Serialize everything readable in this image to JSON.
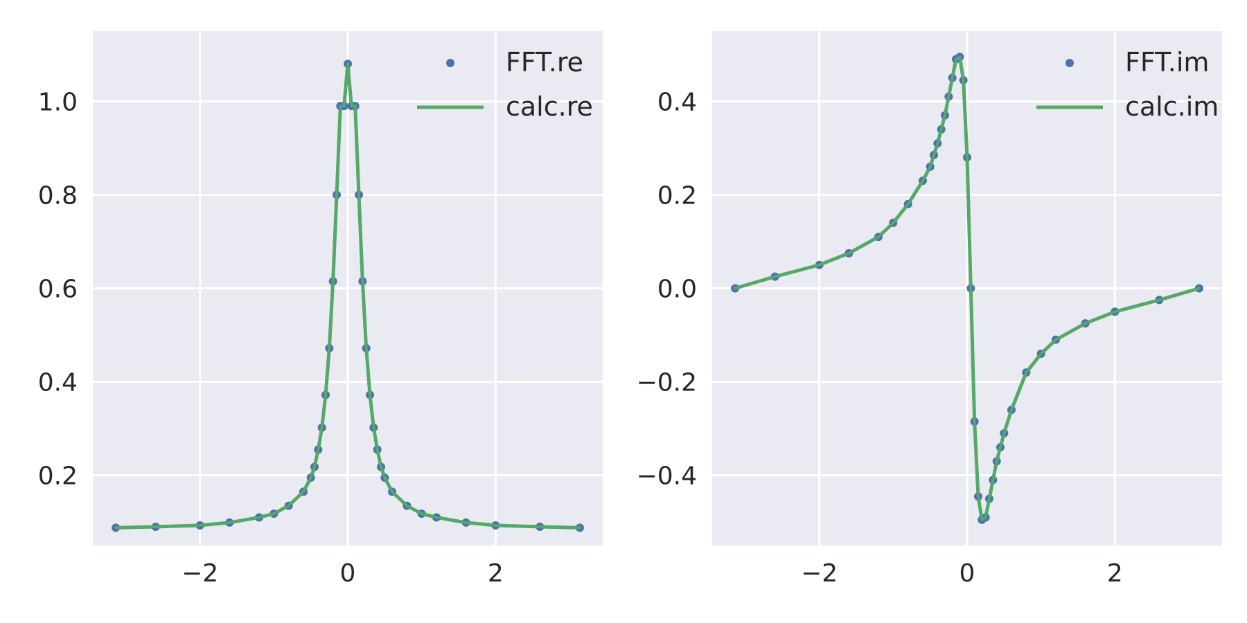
{
  "chart_data": [
    {
      "type": "line",
      "title": "",
      "xlabel": "",
      "ylabel": "",
      "xlim": [
        -3.45,
        3.45
      ],
      "ylim": [
        0.05,
        1.15
      ],
      "x_ticks": [
        -2,
        0,
        2
      ],
      "x_tick_labels": [
        "−2",
        "0",
        "2"
      ],
      "y_ticks": [
        0.2,
        0.4,
        0.6,
        0.8,
        1.0
      ],
      "y_tick_labels": [
        "0.2",
        "0.4",
        "0.6",
        "0.8",
        "1.0"
      ],
      "grid": true,
      "legend": {
        "position": "top-right",
        "entries": [
          "FFT.re",
          "calc.re"
        ]
      },
      "series": [
        {
          "name": "FFT.re",
          "style": "scatter",
          "color": "#4c72b0",
          "x": [
            -3.14,
            -2.6,
            -2.0,
            -1.6,
            -1.2,
            -1.0,
            -0.8,
            -0.6,
            -0.5,
            -0.45,
            -0.4,
            -0.35,
            -0.3,
            -0.25,
            -0.2,
            -0.15,
            -0.1,
            -0.05,
            0.0,
            0.05,
            0.1,
            0.15,
            0.2,
            0.25,
            0.3,
            0.35,
            0.4,
            0.45,
            0.5,
            0.6,
            0.8,
            1.0,
            1.2,
            1.6,
            2.0,
            2.6,
            3.14
          ],
          "y": [
            0.088,
            0.09,
            0.093,
            0.099,
            0.11,
            0.118,
            0.135,
            0.165,
            0.195,
            0.218,
            0.255,
            0.302,
            0.372,
            0.472,
            0.615,
            0.8,
            0.99,
            0.99,
            1.08,
            0.99,
            0.99,
            0.8,
            0.615,
            0.472,
            0.372,
            0.302,
            0.255,
            0.218,
            0.195,
            0.165,
            0.135,
            0.118,
            0.11,
            0.099,
            0.093,
            0.09,
            0.088
          ]
        },
        {
          "name": "calc.re",
          "style": "line",
          "color": "#55a868",
          "x": [
            -3.14,
            -2.6,
            -2.0,
            -1.6,
            -1.2,
            -1.0,
            -0.8,
            -0.6,
            -0.5,
            -0.45,
            -0.4,
            -0.35,
            -0.3,
            -0.25,
            -0.2,
            -0.15,
            -0.1,
            -0.05,
            0.0,
            0.05,
            0.1,
            0.15,
            0.2,
            0.25,
            0.3,
            0.35,
            0.4,
            0.45,
            0.5,
            0.6,
            0.8,
            1.0,
            1.2,
            1.6,
            2.0,
            2.6,
            3.14
          ],
          "y": [
            0.088,
            0.09,
            0.093,
            0.099,
            0.11,
            0.118,
            0.135,
            0.165,
            0.195,
            0.218,
            0.255,
            0.302,
            0.372,
            0.472,
            0.615,
            0.8,
            0.99,
            0.99,
            1.08,
            0.99,
            0.99,
            0.8,
            0.615,
            0.472,
            0.372,
            0.302,
            0.255,
            0.218,
            0.195,
            0.165,
            0.135,
            0.118,
            0.11,
            0.099,
            0.093,
            0.09,
            0.088
          ]
        }
      ]
    },
    {
      "type": "line",
      "title": "",
      "xlabel": "",
      "ylabel": "",
      "xlim": [
        -3.45,
        3.45
      ],
      "ylim": [
        -0.55,
        0.55
      ],
      "x_ticks": [
        -2,
        0,
        2
      ],
      "x_tick_labels": [
        "−2",
        "0",
        "2"
      ],
      "y_ticks": [
        -0.4,
        -0.2,
        0.0,
        0.2,
        0.4
      ],
      "y_tick_labels": [
        "−0.4",
        "−0.2",
        "0.0",
        "0.2",
        "0.4"
      ],
      "grid": true,
      "legend": {
        "position": "top-right",
        "entries": [
          "FFT.im",
          "calc.im"
        ]
      },
      "series": [
        {
          "name": "FFT.im",
          "style": "scatter",
          "color": "#4c72b0",
          "x": [
            -3.14,
            -2.6,
            -2.0,
            -1.6,
            -1.2,
            -1.0,
            -0.8,
            -0.6,
            -0.5,
            -0.45,
            -0.4,
            -0.35,
            -0.3,
            -0.25,
            -0.2,
            -0.15,
            -0.1,
            -0.05,
            0.0,
            0.05,
            0.1,
            0.15,
            0.2,
            0.25,
            0.3,
            0.35,
            0.4,
            0.45,
            0.5,
            0.6,
            0.8,
            1.0,
            1.2,
            1.6,
            2.0,
            2.6,
            3.14
          ],
          "y": [
            0.0,
            0.025,
            0.05,
            0.075,
            0.11,
            0.14,
            0.18,
            0.23,
            0.26,
            0.285,
            0.31,
            0.34,
            0.37,
            0.41,
            0.45,
            0.49,
            0.495,
            0.445,
            0.28,
            0.0,
            -0.285,
            -0.445,
            -0.495,
            -0.49,
            -0.45,
            -0.41,
            -0.37,
            -0.34,
            -0.31,
            -0.26,
            -0.18,
            -0.14,
            -0.11,
            -0.075,
            -0.05,
            -0.025,
            0.0
          ]
        },
        {
          "name": "calc.im",
          "style": "line",
          "color": "#55a868",
          "x": [
            -3.14,
            -2.6,
            -2.0,
            -1.6,
            -1.2,
            -1.0,
            -0.8,
            -0.6,
            -0.5,
            -0.45,
            -0.4,
            -0.35,
            -0.3,
            -0.25,
            -0.2,
            -0.15,
            -0.1,
            -0.05,
            0.0,
            0.05,
            0.1,
            0.15,
            0.2,
            0.25,
            0.3,
            0.35,
            0.4,
            0.45,
            0.5,
            0.6,
            0.8,
            1.0,
            1.2,
            1.6,
            2.0,
            2.6,
            3.14
          ],
          "y": [
            0.0,
            0.025,
            0.05,
            0.075,
            0.11,
            0.14,
            0.18,
            0.23,
            0.26,
            0.285,
            0.31,
            0.34,
            0.37,
            0.41,
            0.45,
            0.49,
            0.495,
            0.445,
            0.28,
            0.0,
            -0.285,
            -0.445,
            -0.495,
            -0.49,
            -0.45,
            -0.41,
            -0.37,
            -0.34,
            -0.31,
            -0.26,
            -0.18,
            -0.14,
            -0.11,
            -0.075,
            -0.05,
            -0.025,
            0.0
          ]
        }
      ]
    }
  ],
  "style": {
    "axes_background": "#eaeaf2",
    "grid_color": "#ffffff",
    "text_color": "#262626"
  }
}
